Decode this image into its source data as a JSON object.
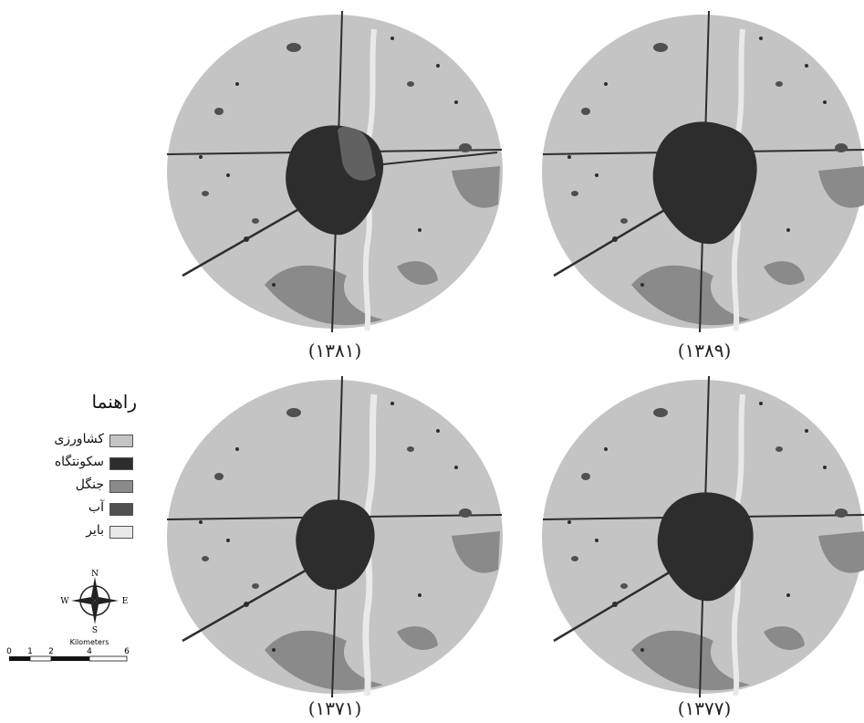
{
  "maps": [
    {
      "id": "tl",
      "caption": "(۱۳۸۱)"
    },
    {
      "id": "tr",
      "caption": "(۱۳۸۹)"
    },
    {
      "id": "bl",
      "caption": "(۱۳۷۱)"
    },
    {
      "id": "br",
      "caption": "(۱۳۷۷)"
    }
  ],
  "legend": {
    "title": "راهنما",
    "items": [
      {
        "label": "کشاورزی",
        "color": "#c4c4c4"
      },
      {
        "label": "سکونتگاه",
        "color": "#2d2d2d"
      },
      {
        "label": "جنگل",
        "color": "#8a8a8a"
      },
      {
        "label": "آب",
        "color": "#505050"
      },
      {
        "label": "بایر",
        "color": "#e9e9e9"
      }
    ]
  },
  "compass": {
    "n": "N",
    "s": "S",
    "e": "E",
    "w": "W"
  },
  "scale": {
    "unit": "Kilometers",
    "ticks": [
      "0",
      "1",
      "2",
      "4",
      "6"
    ]
  }
}
